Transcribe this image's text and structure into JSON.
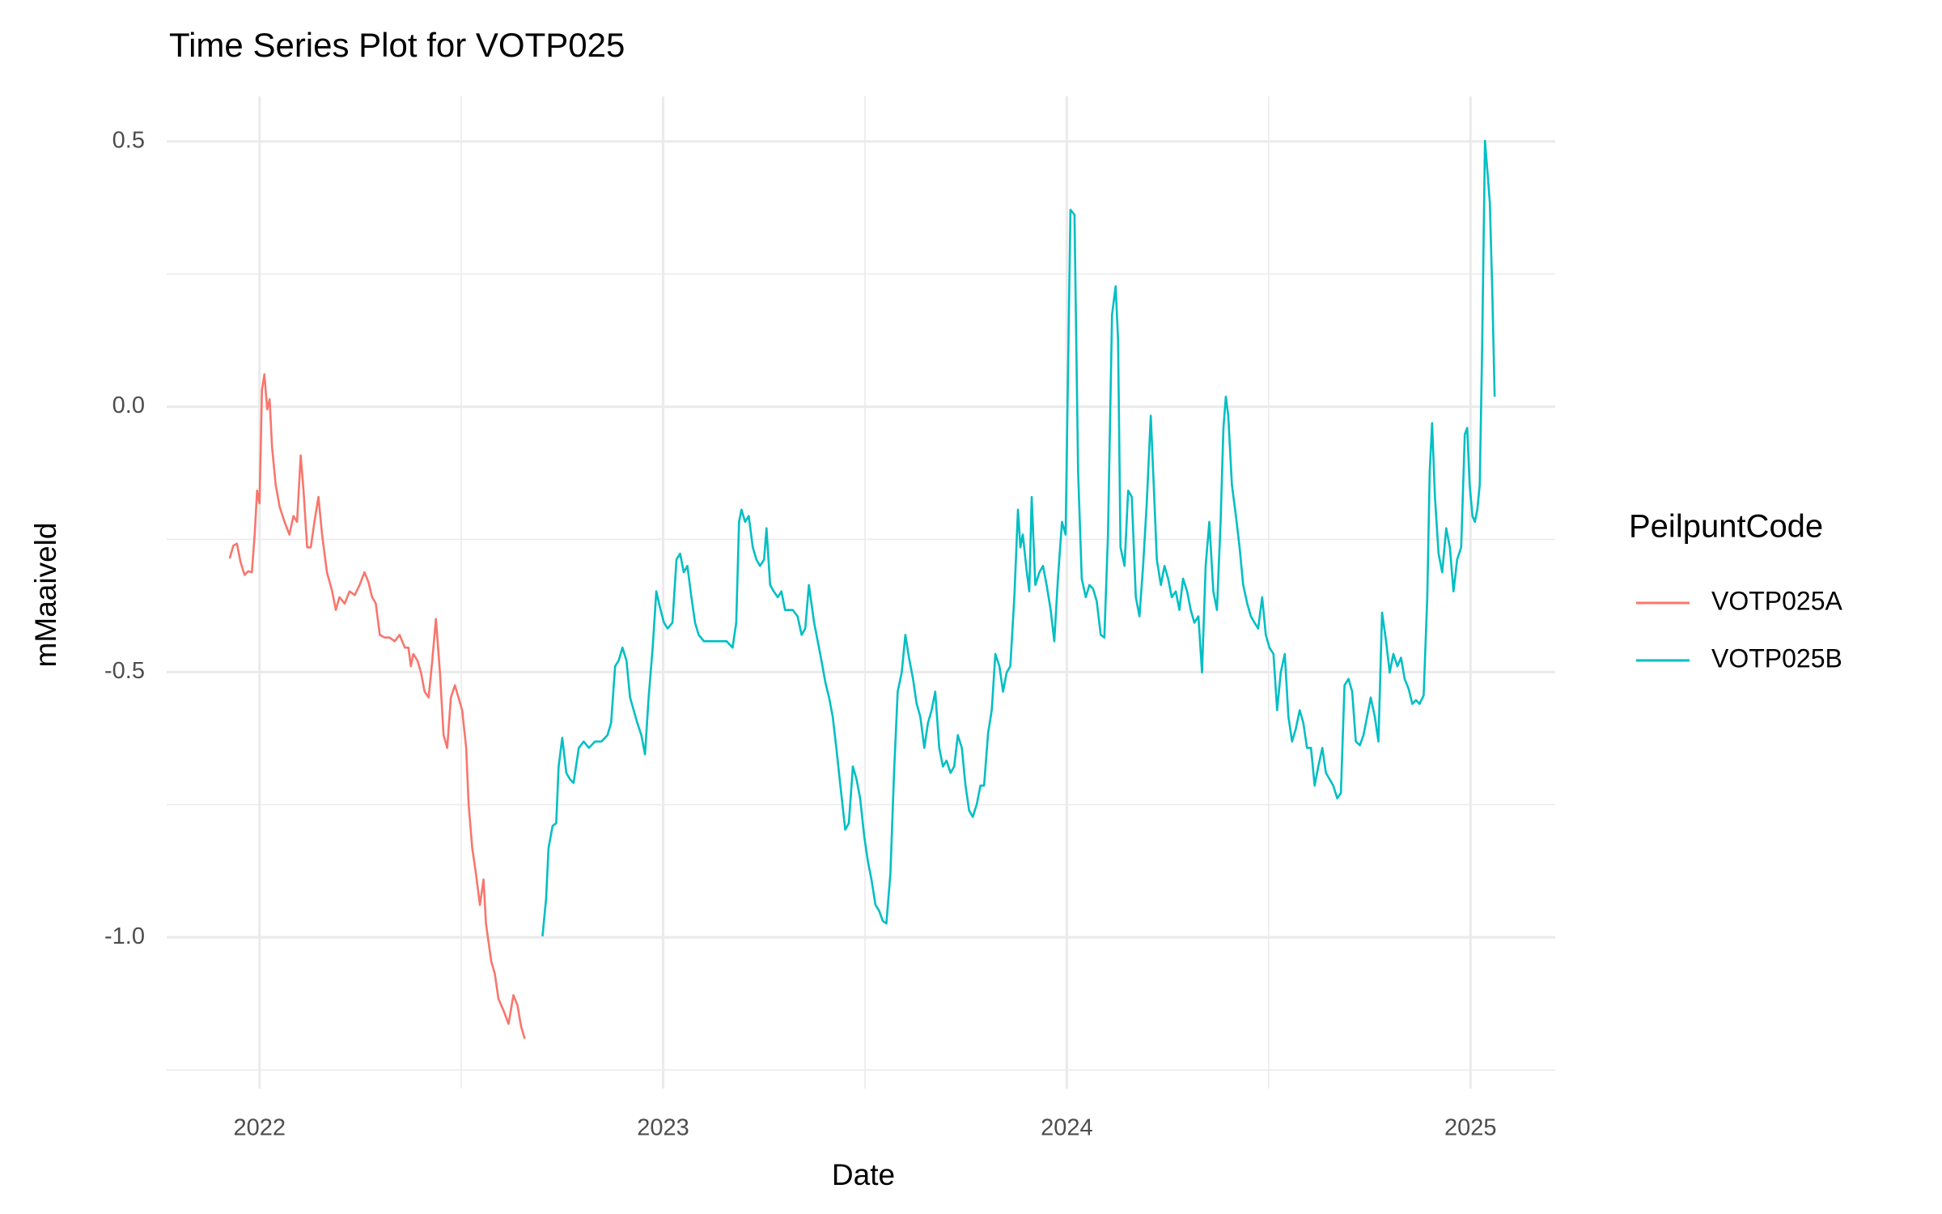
{
  "chart_data": {
    "type": "line",
    "title": "Time Series Plot for VOTP025",
    "xlabel": "Date",
    "ylabel": "mMaaiveld",
    "legend_title": "PeilpuntCode",
    "legend_position": "right",
    "grid": true,
    "xlim": [
      2021.77,
      2025.21
    ],
    "xticks": [
      2022,
      2023,
      2024,
      2025
    ],
    "x_minor_grid": [
      2022.5,
      2023.5,
      2024.5
    ],
    "ylim": [
      -1.285,
      0.585
    ],
    "yticks": [
      {
        "value": -1.0,
        "label": "-1.0"
      },
      {
        "value": -0.5,
        "label": "-0.5"
      },
      {
        "value": 0.0,
        "label": "0.0"
      },
      {
        "value": 0.5,
        "label": "0.5"
      }
    ],
    "y_minor_grid": [
      -1.25,
      -0.75,
      -0.25,
      0.25
    ],
    "series": [
      {
        "name": "VOTP025A",
        "color": "#F8766D",
        "x": [
          2021.926,
          2021.935,
          2021.944,
          2021.953,
          2021.963,
          2021.972,
          2021.981,
          2021.988,
          2021.994,
          2022.0,
          2022.006,
          2022.012,
          2022.019,
          2022.025,
          2022.031,
          2022.04,
          2022.05,
          2022.062,
          2022.074,
          2022.084,
          2022.093,
          2022.102,
          2022.109,
          2022.118,
          2022.127,
          2022.136,
          2022.146,
          2022.155,
          2022.167,
          2022.18,
          2022.189,
          2022.198,
          2022.211,
          2022.223,
          2022.236,
          2022.248,
          2022.26,
          2022.27,
          2022.279,
          2022.288,
          2022.298,
          2022.31,
          2022.322,
          2022.335,
          2022.347,
          2022.36,
          2022.369,
          2022.375,
          2022.381,
          2022.391,
          2022.4,
          2022.409,
          2022.419,
          2022.428,
          2022.437,
          2022.447,
          2022.456,
          2022.465,
          2022.474,
          2022.484,
          2022.493,
          2022.502,
          2022.512,
          2022.518,
          2022.527,
          2022.536,
          2022.546,
          2022.555,
          2022.561,
          2022.574,
          2022.583,
          2022.592,
          2022.605,
          2022.617,
          2022.629,
          2022.639,
          2022.648,
          2022.657
        ],
        "values": [
          -0.286,
          -0.262,
          -0.258,
          -0.293,
          -0.317,
          -0.31,
          -0.312,
          -0.241,
          -0.158,
          -0.182,
          0.031,
          0.061,
          -0.005,
          0.014,
          -0.076,
          -0.147,
          -0.189,
          -0.217,
          -0.241,
          -0.206,
          -0.217,
          -0.092,
          -0.158,
          -0.265,
          -0.265,
          -0.217,
          -0.17,
          -0.241,
          -0.312,
          -0.348,
          -0.383,
          -0.359,
          -0.371,
          -0.348,
          -0.355,
          -0.336,
          -0.312,
          -0.331,
          -0.359,
          -0.371,
          -0.43,
          -0.435,
          -0.435,
          -0.442,
          -0.43,
          -0.454,
          -0.454,
          -0.489,
          -0.466,
          -0.478,
          -0.501,
          -0.537,
          -0.548,
          -0.478,
          -0.4,
          -0.501,
          -0.619,
          -0.643,
          -0.548,
          -0.525,
          -0.548,
          -0.572,
          -0.643,
          -0.749,
          -0.832,
          -0.879,
          -0.939,
          -0.891,
          -0.974,
          -1.045,
          -1.069,
          -1.116,
          -1.139,
          -1.163,
          -1.109,
          -1.128,
          -1.168,
          -1.191
        ]
      },
      {
        "name": "VOTP025B",
        "color": "#00BFC4",
        "x": [
          2022.701,
          2022.71,
          2022.716,
          2022.726,
          2022.735,
          2022.741,
          2022.75,
          2022.76,
          2022.769,
          2022.778,
          2022.791,
          2022.803,
          2022.816,
          2022.831,
          2022.847,
          2022.862,
          2022.871,
          2022.881,
          2022.89,
          2022.899,
          2022.909,
          2022.918,
          2022.927,
          2022.936,
          2022.946,
          2022.955,
          2022.964,
          2022.974,
          2022.983,
          2022.992,
          2023.002,
          2023.011,
          2023.023,
          2023.033,
          2023.042,
          2023.051,
          2023.06,
          2023.07,
          2023.079,
          2023.088,
          2023.101,
          2023.11,
          2023.126,
          2023.141,
          2023.157,
          2023.172,
          2023.181,
          2023.188,
          2023.194,
          2023.203,
          2023.212,
          2023.222,
          2023.231,
          2023.24,
          2023.25,
          2023.256,
          2023.265,
          2023.274,
          2023.284,
          2023.293,
          2023.302,
          2023.312,
          2023.321,
          2023.333,
          2023.343,
          2023.352,
          2023.361,
          2023.374,
          2023.383,
          2023.392,
          2023.402,
          2023.411,
          2023.42,
          2023.429,
          2023.439,
          2023.451,
          2023.46,
          2023.47,
          2023.479,
          2023.488,
          2023.498,
          2023.507,
          2023.516,
          2023.526,
          2023.535,
          2023.544,
          2023.553,
          2023.563,
          2023.572,
          2023.581,
          2023.591,
          2023.6,
          2023.609,
          2023.619,
          2023.628,
          2023.637,
          2023.647,
          2023.656,
          2023.665,
          2023.674,
          2023.684,
          2023.693,
          2023.702,
          2023.712,
          2023.721,
          2023.73,
          2023.74,
          2023.749,
          2023.758,
          2023.767,
          2023.777,
          2023.786,
          2023.795,
          2023.805,
          2023.814,
          2023.823,
          2023.833,
          2023.842,
          2023.851,
          2023.86,
          2023.87,
          2023.879,
          2023.885,
          2023.891,
          2023.901,
          2023.907,
          2023.913,
          2023.922,
          2023.932,
          2023.941,
          2023.95,
          2023.96,
          2023.969,
          2023.978,
          2023.988,
          2023.997,
          2024.003,
          2024.009,
          2024.019,
          2024.028,
          2024.037,
          2024.047,
          2024.056,
          2024.065,
          2024.074,
          2024.084,
          2024.093,
          2024.102,
          2024.112,
          2024.121,
          2024.127,
          2024.133,
          2024.143,
          2024.152,
          2024.161,
          2024.171,
          2024.18,
          2024.189,
          2024.198,
          2024.208,
          2024.214,
          2024.223,
          2024.233,
          2024.242,
          2024.251,
          2024.26,
          2024.27,
          2024.279,
          2024.288,
          2024.298,
          2024.307,
          2024.316,
          2024.326,
          2024.335,
          2024.344,
          2024.353,
          2024.363,
          2024.372,
          2024.381,
          2024.388,
          2024.394,
          2024.4,
          2024.409,
          2024.419,
          2024.428,
          2024.437,
          2024.447,
          2024.456,
          2024.465,
          2024.474,
          2024.484,
          2024.493,
          2024.502,
          2024.512,
          2024.521,
          2024.53,
          2024.54,
          2024.549,
          2024.558,
          2024.567,
          2024.577,
          2024.586,
          2024.595,
          2024.605,
          2024.614,
          2024.623,
          2024.633,
          2024.642,
          2024.651,
          2024.66,
          2024.67,
          2024.679,
          2024.688,
          2024.698,
          2024.707,
          2024.716,
          2024.726,
          2024.735,
          2024.744,
          2024.753,
          2024.763,
          2024.772,
          2024.781,
          2024.791,
          2024.8,
          2024.809,
          2024.819,
          2024.828,
          2024.837,
          2024.847,
          2024.856,
          2024.865,
          2024.874,
          2024.884,
          2024.893,
          2024.899,
          2024.905,
          2024.912,
          2024.921,
          2024.93,
          2024.94,
          2024.949,
          2024.958,
          2024.967,
          2024.977,
          2024.986,
          2024.992,
          2024.998,
          2025.005,
          2025.011,
          2025.017,
          2025.023,
          2025.029,
          2025.036,
          2025.042,
          2025.048,
          2025.054,
          2025.06
        ],
        "values": [
          -0.998,
          -0.927,
          -0.832,
          -0.79,
          -0.785,
          -0.678,
          -0.624,
          -0.69,
          -0.702,
          -0.709,
          -0.643,
          -0.631,
          -0.643,
          -0.631,
          -0.631,
          -0.619,
          -0.596,
          -0.489,
          -0.478,
          -0.454,
          -0.478,
          -0.548,
          -0.572,
          -0.596,
          -0.619,
          -0.655,
          -0.548,
          -0.454,
          -0.348,
          -0.378,
          -0.407,
          -0.418,
          -0.407,
          -0.288,
          -0.277,
          -0.312,
          -0.3,
          -0.359,
          -0.407,
          -0.43,
          -0.442,
          -0.442,
          -0.442,
          -0.442,
          -0.442,
          -0.454,
          -0.407,
          -0.217,
          -0.194,
          -0.217,
          -0.206,
          -0.265,
          -0.288,
          -0.3,
          -0.288,
          -0.229,
          -0.336,
          -0.348,
          -0.359,
          -0.348,
          -0.383,
          -0.383,
          -0.383,
          -0.395,
          -0.43,
          -0.418,
          -0.336,
          -0.407,
          -0.442,
          -0.478,
          -0.52,
          -0.548,
          -0.584,
          -0.643,
          -0.714,
          -0.797,
          -0.785,
          -0.678,
          -0.702,
          -0.738,
          -0.809,
          -0.856,
          -0.891,
          -0.939,
          -0.95,
          -0.969,
          -0.974,
          -0.879,
          -0.69,
          -0.537,
          -0.501,
          -0.43,
          -0.473,
          -0.513,
          -0.56,
          -0.584,
          -0.643,
          -0.596,
          -0.572,
          -0.537,
          -0.643,
          -0.678,
          -0.667,
          -0.69,
          -0.678,
          -0.619,
          -0.643,
          -0.714,
          -0.761,
          -0.773,
          -0.749,
          -0.714,
          -0.714,
          -0.615,
          -0.572,
          -0.466,
          -0.489,
          -0.537,
          -0.501,
          -0.489,
          -0.359,
          -0.194,
          -0.265,
          -0.241,
          -0.312,
          -0.348,
          -0.17,
          -0.336,
          -0.312,
          -0.3,
          -0.336,
          -0.383,
          -0.442,
          -0.324,
          -0.217,
          -0.241,
          0.066,
          0.371,
          0.362,
          -0.123,
          -0.324,
          -0.359,
          -0.336,
          -0.343,
          -0.366,
          -0.43,
          -0.435,
          -0.241,
          0.173,
          0.227,
          0.125,
          -0.265,
          -0.3,
          -0.158,
          -0.17,
          -0.359,
          -0.395,
          -0.3,
          -0.182,
          -0.017,
          -0.123,
          -0.288,
          -0.336,
          -0.3,
          -0.324,
          -0.359,
          -0.348,
          -0.383,
          -0.324,
          -0.348,
          -0.383,
          -0.407,
          -0.395,
          -0.501,
          -0.3,
          -0.217,
          -0.348,
          -0.383,
          -0.217,
          -0.04,
          0.019,
          -0.017,
          -0.147,
          -0.206,
          -0.265,
          -0.336,
          -0.371,
          -0.395,
          -0.407,
          -0.418,
          -0.359,
          -0.43,
          -0.454,
          -0.466,
          -0.572,
          -0.501,
          -0.466,
          -0.584,
          -0.631,
          -0.608,
          -0.572,
          -0.596,
          -0.643,
          -0.643,
          -0.714,
          -0.678,
          -0.643,
          -0.69,
          -0.702,
          -0.714,
          -0.738,
          -0.728,
          -0.525,
          -0.513,
          -0.537,
          -0.631,
          -0.638,
          -0.619,
          -0.584,
          -0.548,
          -0.584,
          -0.631,
          -0.388,
          -0.442,
          -0.501,
          -0.466,
          -0.489,
          -0.473,
          -0.513,
          -0.532,
          -0.56,
          -0.553,
          -0.56,
          -0.544,
          -0.359,
          -0.123,
          -0.031,
          -0.17,
          -0.277,
          -0.312,
          -0.229,
          -0.265,
          -0.348,
          -0.288,
          -0.265,
          -0.052,
          -0.04,
          -0.147,
          -0.206,
          -0.217,
          -0.194,
          -0.147,
          0.113,
          0.501,
          0.444,
          0.385,
          0.22,
          0.019
        ]
      }
    ]
  }
}
